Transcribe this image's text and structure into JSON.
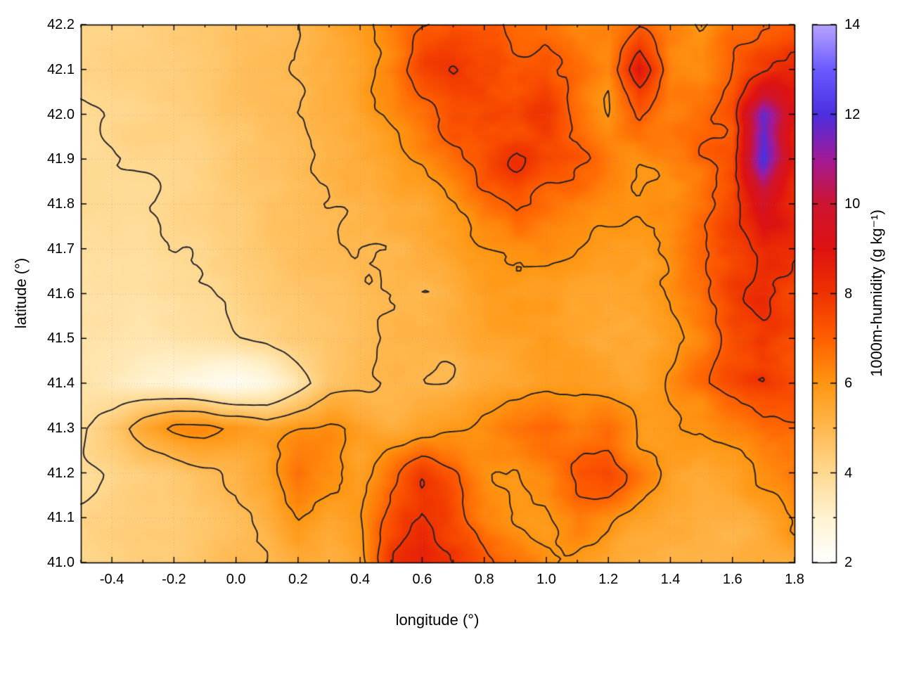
{
  "figure": {
    "background": "#ffffff"
  },
  "chart_data": {
    "type": "heatmap",
    "title": "",
    "xlabel": "longitude (°)",
    "ylabel": "latitude (°)",
    "cblabel": "1000m-humidity (g kg⁻¹)",
    "xlim": [
      -0.5,
      1.8
    ],
    "ylim": [
      41.0,
      42.2
    ],
    "clim": [
      2,
      14
    ],
    "xticks": [
      -0.4,
      -0.2,
      0,
      0.2,
      0.4,
      0.6,
      0.8,
      1,
      1.2,
      1.4,
      1.6,
      1.8
    ],
    "xminor_step": 0.1,
    "yticks": [
      41,
      41.1,
      41.2,
      41.3,
      41.4,
      41.5,
      41.6,
      41.7,
      41.8,
      41.9,
      42,
      42.1,
      42.2
    ],
    "cbticks": [
      2,
      4,
      6,
      8,
      10,
      12,
      14
    ],
    "cbminor_step": 1,
    "grid": true,
    "grid_style": "dotted",
    "legend_position": "colorbar-right",
    "contour_levels": [
      4,
      5,
      6,
      7,
      8
    ],
    "contour_color": "#20202a",
    "palette": [
      [
        2,
        "#ffffff"
      ],
      [
        3,
        "#fff3d2"
      ],
      [
        4,
        "#ffd991"
      ],
      [
        5,
        "#ffb84f"
      ],
      [
        6,
        "#ff9612"
      ],
      [
        7,
        "#ff5f00"
      ],
      [
        8,
        "#ef3300"
      ],
      [
        9,
        "#de1212"
      ],
      [
        10,
        "#cd1430"
      ],
      [
        11,
        "#a21a96"
      ],
      [
        12,
        "#4b2fe0"
      ],
      [
        13,
        "#6a5bff"
      ],
      [
        14,
        "#b9a4ff"
      ]
    ],
    "grid_lon": [
      -0.5,
      -0.4,
      -0.3,
      -0.2,
      -0.1,
      0.0,
      0.1,
      0.2,
      0.3,
      0.4,
      0.5,
      0.6,
      0.7,
      0.8,
      0.9,
      1.0,
      1.1,
      1.2,
      1.3,
      1.4,
      1.5,
      1.6,
      1.7,
      1.8
    ],
    "grid_lat": [
      42.2,
      42.1,
      42.0,
      41.9,
      41.8,
      41.7,
      41.6,
      41.5,
      41.4,
      41.3,
      41.2,
      41.1,
      41.0
    ],
    "values": [
      [
        4.1,
        4.2,
        4.3,
        4.4,
        4.5,
        4.6,
        4.8,
        5.0,
        5.3,
        5.7,
        6.3,
        7.2,
        7.6,
        7.2,
        6.8,
        6.8,
        6.3,
        6.2,
        6.8,
        6.2,
        6.0,
        6.8,
        7.2,
        7.6
      ],
      [
        4.1,
        4.2,
        4.3,
        4.4,
        4.5,
        4.7,
        4.9,
        5.1,
        5.4,
        5.8,
        6.4,
        7.4,
        7.9,
        7.6,
        7.2,
        7.4,
        6.7,
        6.3,
        9.2,
        6.6,
        6.2,
        7.0,
        7.6,
        8.2
      ],
      [
        4.0,
        4.1,
        4.2,
        4.3,
        4.4,
        4.6,
        4.8,
        5.0,
        5.2,
        5.5,
        5.9,
        6.6,
        7.6,
        7.9,
        7.4,
        7.6,
        6.9,
        6.1,
        7.2,
        6.4,
        6.6,
        7.2,
        11.5,
        8.6
      ],
      [
        4.0,
        4.0,
        4.1,
        4.2,
        4.3,
        4.5,
        4.7,
        4.9,
        5.1,
        5.3,
        5.6,
        6.1,
        6.9,
        7.6,
        8.1,
        7.6,
        7.1,
        6.3,
        6.1,
        6.4,
        6.9,
        7.4,
        12.2,
        9.0
      ],
      [
        3.9,
        4.0,
        4.0,
        4.1,
        4.2,
        4.4,
        4.6,
        4.8,
        5.0,
        5.2,
        5.4,
        5.7,
        6.1,
        6.9,
        7.1,
        6.6,
        6.3,
        6.1,
        5.9,
        6.1,
        6.6,
        7.6,
        9.6,
        8.1
      ],
      [
        3.8,
        3.9,
        3.9,
        4.0,
        4.1,
        4.3,
        4.5,
        4.7,
        4.9,
        5.1,
        5.2,
        5.4,
        5.7,
        5.9,
        6.1,
        6.1,
        5.9,
        5.8,
        5.8,
        6.1,
        6.9,
        7.9,
        8.6,
        7.9
      ],
      [
        3.7,
        3.8,
        3.8,
        3.9,
        4.0,
        4.2,
        4.4,
        4.6,
        4.8,
        5.0,
        5.1,
        5.2,
        5.4,
        5.6,
        5.8,
        5.8,
        5.7,
        5.6,
        5.7,
        6.0,
        6.6,
        7.6,
        8.1,
        7.6
      ],
      [
        3.6,
        3.6,
        3.5,
        3.6,
        3.7,
        3.9,
        4.1,
        4.4,
        4.7,
        4.9,
        5.0,
        5.1,
        5.3,
        5.5,
        5.6,
        5.7,
        5.6,
        5.5,
        5.6,
        5.9,
        6.3,
        7.1,
        7.6,
        7.3
      ],
      [
        3.6,
        3.4,
        3.1,
        2.8,
        2.5,
        2.2,
        2.6,
        3.6,
        4.6,
        4.9,
        5.0,
        5.1,
        5.2,
        5.4,
        5.5,
        5.6,
        5.6,
        5.6,
        5.7,
        6.1,
        6.6,
        7.3,
        7.9,
        7.6
      ],
      [
        3.9,
        4.6,
        5.6,
        6.1,
        6.3,
        6.1,
        5.6,
        5.9,
        6.1,
        5.6,
        5.4,
        5.6,
        5.8,
        6.1,
        6.6,
        6.9,
        6.4,
        6.9,
        6.1,
        5.9,
        6.1,
        6.6,
        7.1,
        7.1
      ],
      [
        3.9,
        4.1,
        4.3,
        4.6,
        4.9,
        5.1,
        5.6,
        6.6,
        6.1,
        5.6,
        6.6,
        7.6,
        6.9,
        6.1,
        5.9,
        6.3,
        7.1,
        7.4,
        6.4,
        5.6,
        5.3,
        5.6,
        6.1,
        6.6
      ],
      [
        4.1,
        4.2,
        4.3,
        4.4,
        4.6,
        4.9,
        5.3,
        6.1,
        5.6,
        5.9,
        7.1,
        8.2,
        7.6,
        6.6,
        6.1,
        5.9,
        6.6,
        6.1,
        5.6,
        5.3,
        5.1,
        5.3,
        5.6,
        6.1
      ],
      [
        4.2,
        4.3,
        4.4,
        4.5,
        4.7,
        4.9,
        5.1,
        5.6,
        5.4,
        5.6,
        7.7,
        8.7,
        8.1,
        7.1,
        6.6,
        6.1,
        5.9,
        5.6,
        5.4,
        5.1,
        5.0,
        5.1,
        5.3,
        5.6
      ]
    ]
  }
}
